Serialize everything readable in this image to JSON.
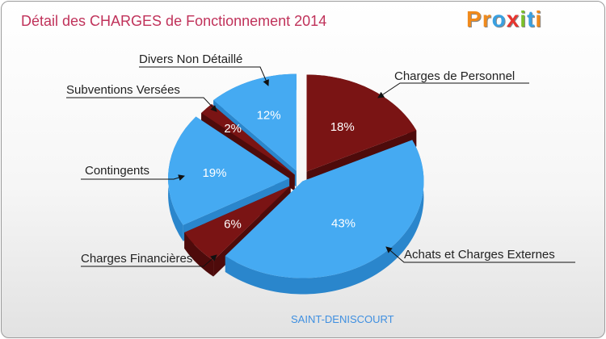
{
  "chart_data": {
    "type": "pie",
    "title": "Détail des CHARGES de Fonctionnement 2014",
    "subtitle": "SAINT-DENISCOURT",
    "slices": [
      {
        "label": "Charges de Personnel",
        "value": 18,
        "display": "18%",
        "color": "#7a1414"
      },
      {
        "label": "Achats et Charges Externes",
        "value": 43,
        "display": "43%",
        "color": "#45aaf2"
      },
      {
        "label": "Charges Financières",
        "value": 6,
        "display": "6%",
        "color": "#7a1414"
      },
      {
        "label": "Contingents",
        "value": 19,
        "display": "19%",
        "color": "#45aaf2"
      },
      {
        "label": "Subventions Versées",
        "value": 2,
        "display": "2%",
        "color": "#7a1414"
      },
      {
        "label": "Divers Non Détaillé",
        "value": 12,
        "display": "12%",
        "color": "#45aaf2"
      }
    ]
  },
  "brand": {
    "logo_letters": [
      "P",
      "r",
      "o",
      "x",
      "i",
      "t",
      "i"
    ],
    "logo_colors": [
      "#f08a1c",
      "#f08a1c",
      "#3aa0e0",
      "#e8342e",
      "#7bbf2a",
      "#3aa0e0",
      "#f08a1c"
    ]
  },
  "colors": {
    "title": "#c0325a",
    "dark_side": "#4e0b0b",
    "blue_side": "#2a86cc"
  }
}
